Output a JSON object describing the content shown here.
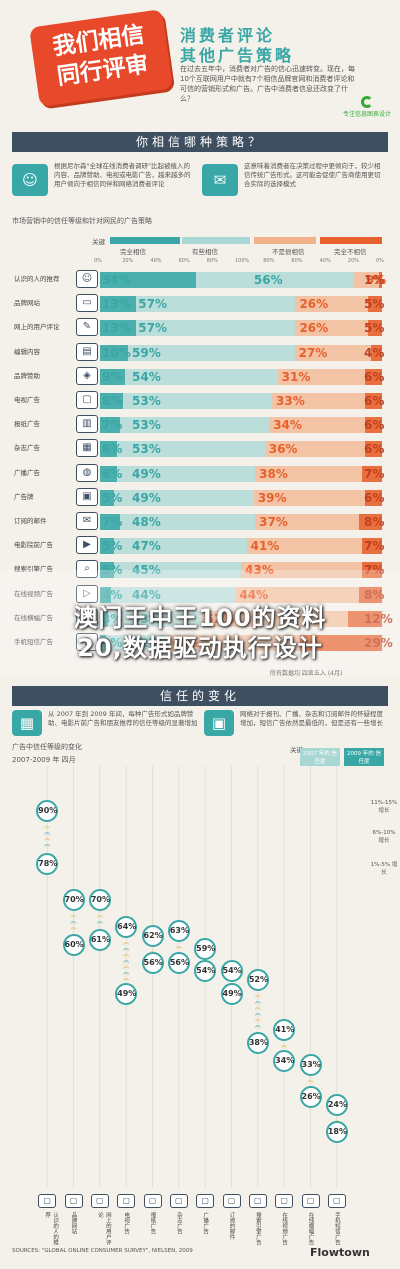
{
  "header": {
    "badge_title": "我们相信\n同行评审",
    "title_line_1": "消费者评论",
    "title_line_2": "其他广告策略",
    "body": "在过去五年中，消费者对广告的信心迅速转变。现在，每10个互联网用户中就有7个相信品牌官网和消费者评论和可信的营销形式和广告。广告中消费者信息还改变了什么？",
    "logo_text": "专注信息图表设计"
  },
  "section1": {
    "banner": "你相信哪种策略？",
    "intro_left": "根据尼尔森\"全球在线消费者调研\"比起被植入的内容、品牌赞助、电视或电影广告，越来越多的用户倾向于相信同伴和网络消费者评论",
    "intro_right": "这意味着消费者在决策过程中更倾向于，较少相信传统广告形式。这可能会促使广告商使用更切合实际的选择模式",
    "label": "市场营销中的信任等级和针对网民的广告策略",
    "legend": {
      "key": "关键",
      "trust_complete": "完全相信",
      "trust_some": "有些相信",
      "distrust_some": "不是很相信",
      "distrust_complete": "完全不相信"
    },
    "note": "所有数据均 四舍五入 (4月)"
  },
  "chart_data": [
    {
      "type": "bar",
      "title": "市场营销中的信任等级和针对网民的广告策略",
      "xlim": [
        0,
        100
      ],
      "ticks": [
        "0%",
        "20%",
        "40%",
        "60%",
        "80%",
        "100%",
        "80%",
        "60%",
        "40%",
        "20%",
        "0%"
      ],
      "categories": [
        "认识的人的推荐",
        "品牌网站",
        "网上的用户评论",
        "编辑内容",
        "品牌赞助",
        "电视广告",
        "报纸广告",
        "杂志广告",
        "广播广告",
        "广告牌",
        "订阅的邮件",
        "电影院前广告",
        "搜索引擎广告",
        "在线视频广告",
        "在线横幅广告",
        "手机短信广告"
      ],
      "series": [
        {
          "name": "完全相信",
          "values": [
            34,
            13,
            13,
            10,
            9,
            8,
            7,
            6,
            6,
            5,
            7,
            5,
            5,
            4,
            3,
            2
          ]
        },
        {
          "name": "有些相信",
          "values": [
            56,
            57,
            57,
            59,
            54,
            53,
            53,
            53,
            49,
            49,
            48,
            47,
            45,
            44,
            33,
            22
          ]
        },
        {
          "name": "不是很相信",
          "values": [
            9,
            26,
            26,
            27,
            31,
            33,
            34,
            36,
            38,
            39,
            37,
            41,
            43,
            44,
            52,
            47
          ]
        },
        {
          "name": "完全不相信",
          "values": [
            1,
            5,
            5,
            4,
            6,
            6,
            6,
            6,
            7,
            6,
            8,
            7,
            7,
            8,
            12,
            29
          ]
        }
      ]
    },
    {
      "type": "scatter",
      "title": "广告中信任等级的变化",
      "subtitle": "2007-2009 年 四月",
      "legend": [
        "2007 年的 信任度",
        "2009 年的 信任度"
      ],
      "categories": [
        "认识的人的推荐",
        "品牌网站",
        "网上的用户评论",
        "电视广告",
        "报纸广告",
        "杂志广告",
        "广播广告",
        "订阅的邮件",
        "搜索引擎广告",
        "在线视频广告",
        "在线横幅广告",
        "手机短信广告"
      ],
      "series": [
        {
          "name": "2007",
          "values": [
            78,
            60,
            61,
            49,
            56,
            56,
            54,
            49,
            38,
            34,
            26,
            18
          ]
        },
        {
          "name": "2009",
          "values": [
            90,
            70,
            70,
            64,
            62,
            63,
            59,
            54,
            52,
            41,
            33,
            24
          ]
        }
      ],
      "change_legend": [
        "11%-15% 增长",
        "6%-10% 增长",
        "1%-5% 增长"
      ]
    }
  ],
  "overlay": {
    "line_1": "澳门王中王100的资料",
    "line_2": "20,数据驱动执行设计"
  },
  "section2": {
    "banner": "信任的变化",
    "intro_left": "从 2007 年到 2009 年间，每种广告形式如品牌赞助、电影片前广告和朋友推荐的信任等级的显著增加",
    "intro_right": "网络对于报刊、广播、杂志和订阅邮件的怀疑程度增加，短信广告依然是最低的，但是还有一些增长",
    "label": "广告中信任等级的变化",
    "sublabel": "2007-2009 年 四月",
    "key": "关键"
  },
  "footer": {
    "source": "SOURCES: \"GLOBAL ONLINE CONSUMER SURVEY\", NIELSEN, 2009",
    "brand": "Flowtown"
  },
  "colors": {
    "teal": "#39a7a6",
    "teal_light": "#a9d7d4",
    "orange_light": "#f2b38c",
    "orange": "#e8602c",
    "navy": "#3e4f62"
  }
}
